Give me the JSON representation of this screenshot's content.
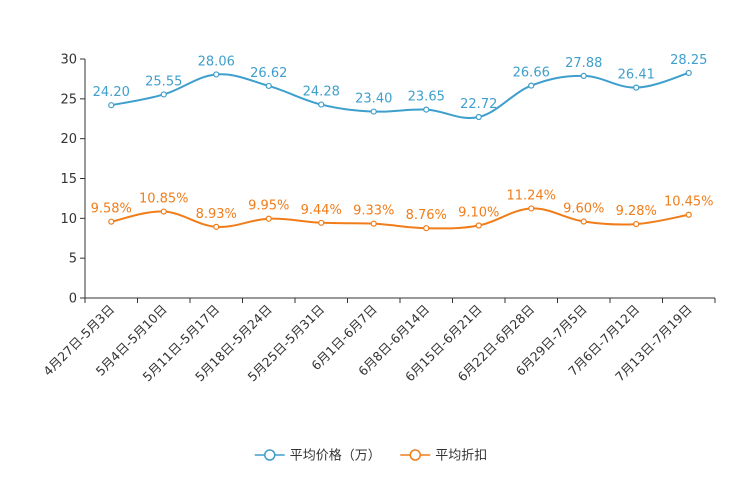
{
  "chart_data": {
    "type": "line",
    "title": "",
    "xlabel": "",
    "ylabel": "",
    "ylim": [
      0,
      30
    ],
    "yticks": [
      0,
      5,
      10,
      15,
      20,
      25,
      30
    ],
    "grid": false,
    "legend_position": "bottom",
    "categories": [
      "4月27日-5月3日",
      "5月4日-5月10日",
      "5月11日-5月17日",
      "5月18日-5月24日",
      "5月25日-5月31日",
      "6月1日-6月7日",
      "6月8日-6月14日",
      "6月15日-6月21日",
      "6月22日-6月28日",
      "6月29日-7月5日",
      "7月6日-7月12日",
      "7月13日-7月19日"
    ],
    "series": [
      {
        "name": "平均价格（万）",
        "color": "#3e9fcd",
        "values": [
          24.2,
          25.55,
          28.06,
          26.62,
          24.28,
          23.4,
          23.65,
          22.72,
          26.66,
          27.88,
          26.41,
          28.25
        ],
        "labels": [
          "24.20",
          "25.55",
          "28.06",
          "26.62",
          "24.28",
          "23.40",
          "23.65",
          "22.72",
          "26.66",
          "27.88",
          "26.41",
          "28.25"
        ]
      },
      {
        "name": "平均折扣",
        "color": "#f07d1a",
        "values": [
          9.58,
          10.85,
          8.93,
          9.95,
          9.44,
          9.33,
          8.76,
          9.1,
          11.24,
          9.6,
          9.28,
          10.45
        ],
        "labels": [
          "9.58%",
          "10.85%",
          "8.93%",
          "9.95%",
          "9.44%",
          "9.33%",
          "8.76%",
          "9.10%",
          "11.24%",
          "9.60%",
          "9.28%",
          "10.45%"
        ]
      }
    ]
  }
}
